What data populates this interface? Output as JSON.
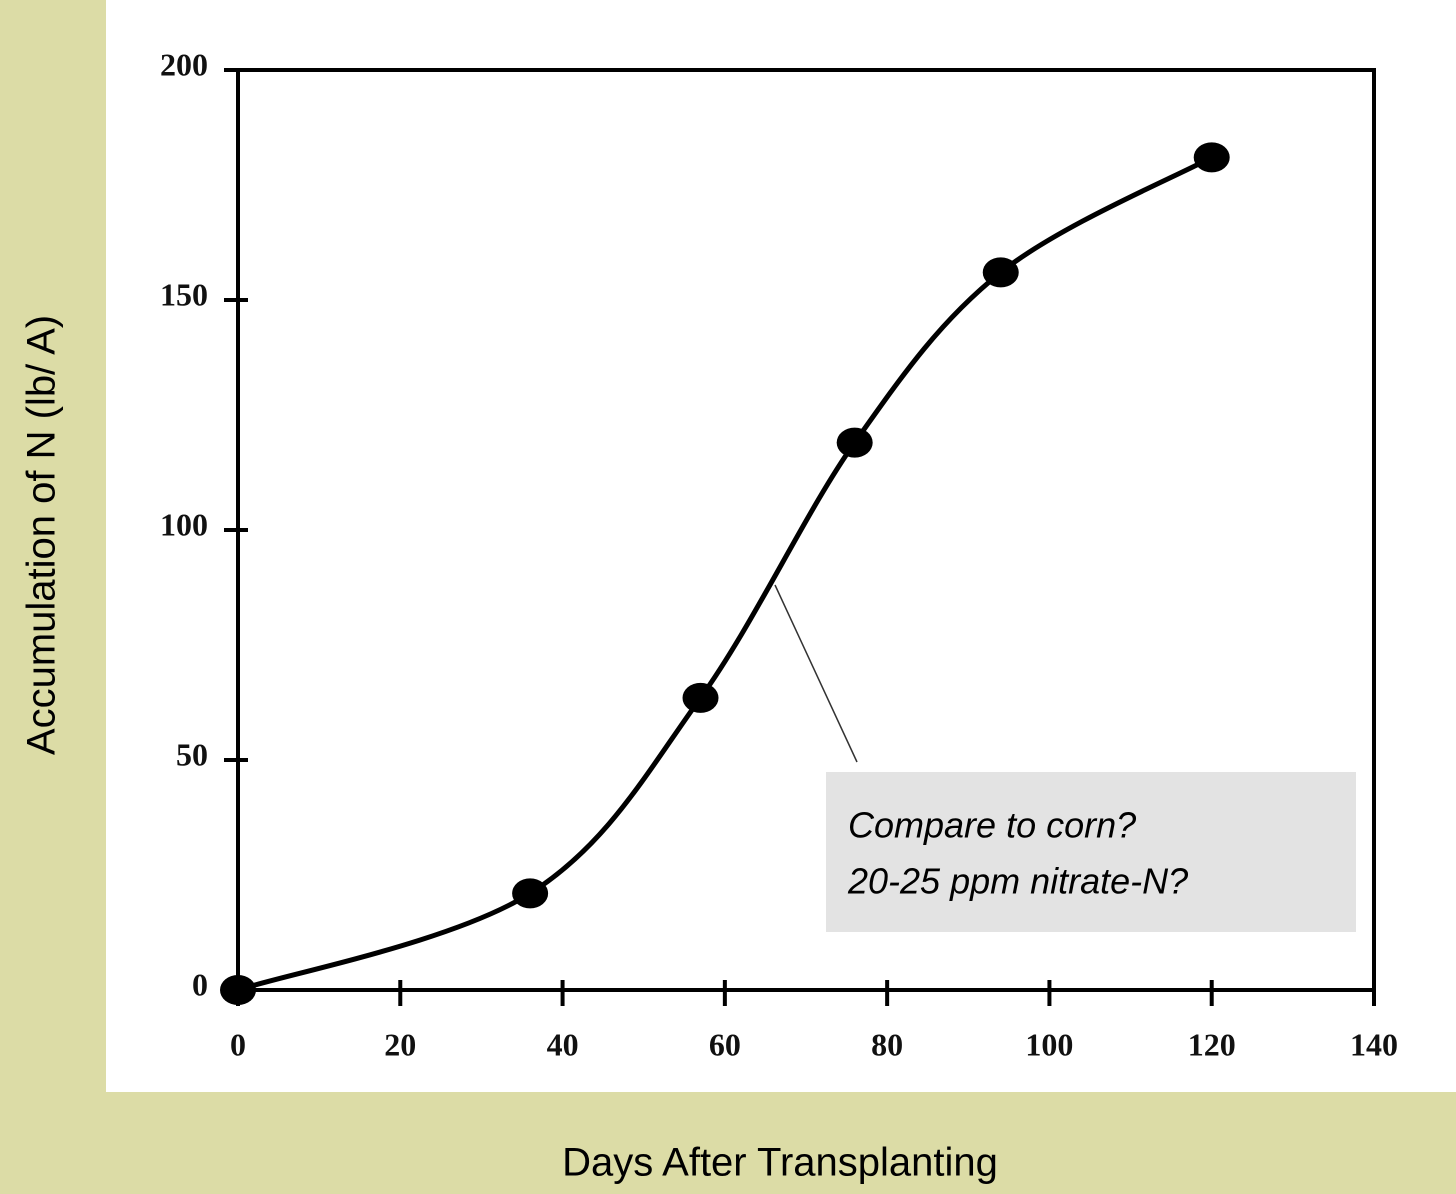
{
  "chart_data": {
    "type": "line",
    "x_label": "Days After Transplanting",
    "y_label": "Accumulation of N (lb/ A)",
    "x": [
      0,
      36,
      57,
      76,
      94,
      120
    ],
    "series": [
      {
        "color": "#000000",
        "values": [
          0,
          21,
          63.5,
          119,
          156,
          181
        ]
      }
    ],
    "xlim": [
      0,
      140
    ],
    "xticks": [
      0,
      20,
      40,
      60,
      80,
      100,
      120,
      140
    ],
    "ylim": [
      0,
      200
    ],
    "yticks": [
      0,
      50,
      100,
      150,
      200
    ],
    "annotation": [
      "Compare to corn?",
      "20-25 ppm nitrate-N?"
    ]
  }
}
